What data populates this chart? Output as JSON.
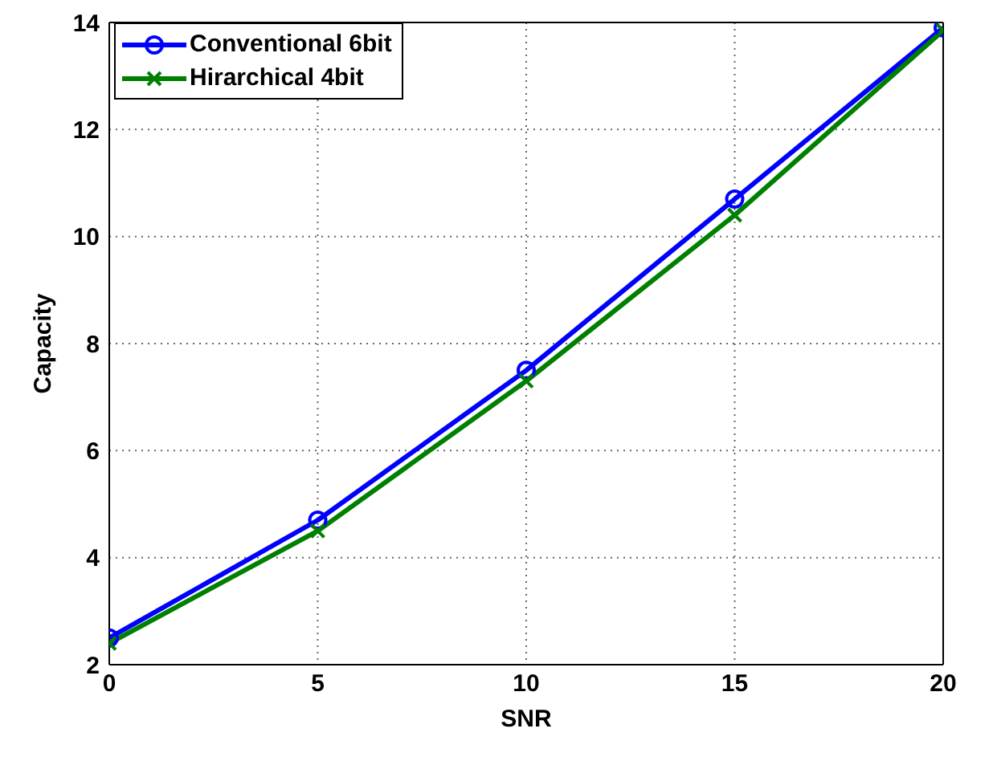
{
  "chart_data": {
    "type": "line",
    "xlabel": "SNR",
    "ylabel": "Capacity",
    "x": [
      0,
      5,
      10,
      15,
      20
    ],
    "series": [
      {
        "name": "Conventional 6bit",
        "color": "#0000ff",
        "marker": "circle",
        "values": [
          2.5,
          4.7,
          7.5,
          10.7,
          13.9
        ]
      },
      {
        "name": "Hirarchical 4bit",
        "color": "#008000",
        "marker": "cross",
        "values": [
          2.4,
          4.5,
          7.3,
          10.4,
          13.85
        ]
      }
    ],
    "xlim": [
      0,
      20
    ],
    "xticks": [
      0,
      5,
      10,
      15,
      20
    ],
    "ylim": [
      2,
      14
    ],
    "yticks": [
      2,
      4,
      6,
      8,
      10,
      12,
      14
    ],
    "grid": true,
    "legend": "top left",
    "line_style": "solid"
  }
}
